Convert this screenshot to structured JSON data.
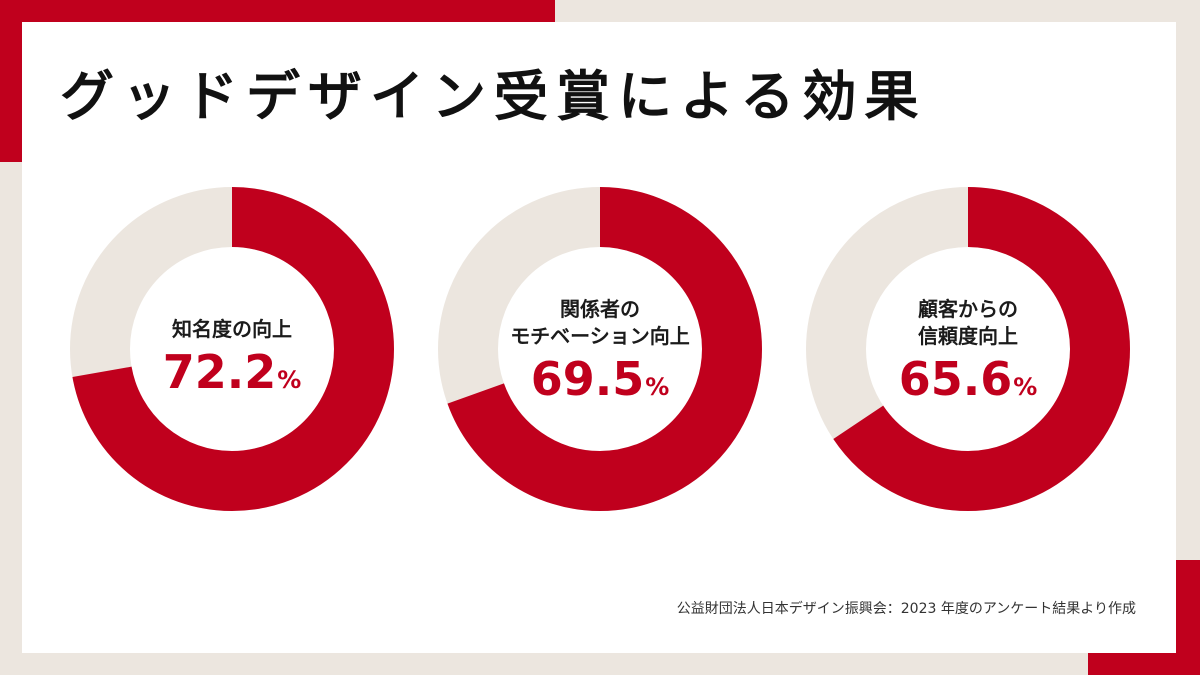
{
  "title": "グッドデザイン受賞による効果",
  "source": "公益財団法人日本デザイン振興会：2023 年度のアンケート結果より作成",
  "colors": {
    "accent": "#c0001d",
    "track": "#ece6df",
    "background": "#ffffff",
    "frame": "#ece6df"
  },
  "chart_data": {
    "type": "pie",
    "variant": "donut",
    "unit": "%",
    "series": [
      {
        "label_lines": [
          "知名度の向上"
        ],
        "value": 72.2,
        "display": "72.2"
      },
      {
        "label_lines": [
          "関係者の",
          "モチベーション向上"
        ],
        "value": 69.5,
        "display": "69.5"
      },
      {
        "label_lines": [
          "顧客からの",
          "信頼度向上"
        ],
        "value": 65.6,
        "display": "65.6"
      }
    ]
  }
}
